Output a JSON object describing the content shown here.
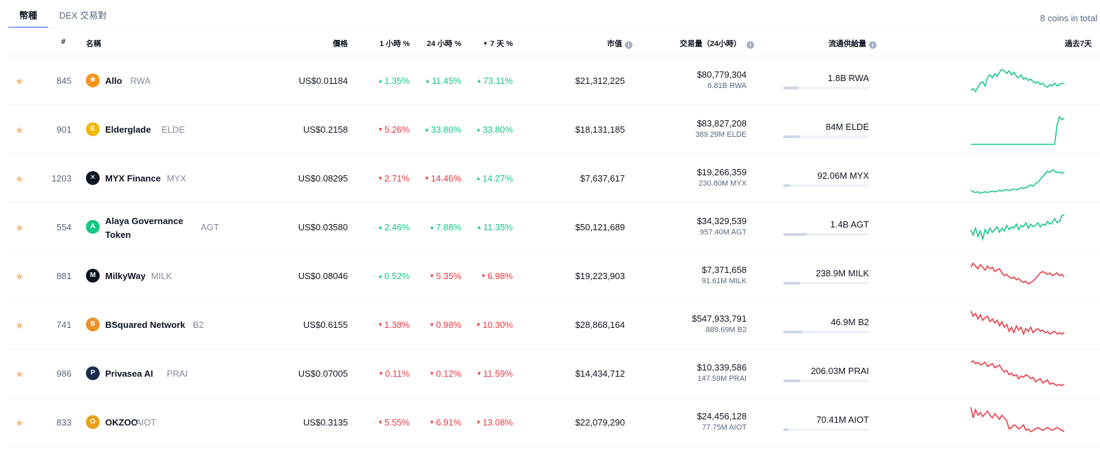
{
  "tabs": [
    {
      "label": "幣種",
      "active": true
    },
    {
      "label": "DEX 交易對",
      "active": false
    }
  ],
  "total_text": "8 coins in total",
  "headers": {
    "rank": "#",
    "name": "名稱",
    "price": "價格",
    "h1": "1 小時 %",
    "h24": "24 小時 %",
    "d7": "7 天 %",
    "mcap": "市值",
    "volume": "交易量（24小時）",
    "supply": "流通供給量",
    "chart": "過去7天"
  },
  "colors": {
    "up": "#16c784",
    "down": "#ea3943",
    "star": "#f6b87e"
  },
  "coins": [
    {
      "rank": "845",
      "name": "Allo",
      "symbol": "RWA",
      "logo_color": "#f7931a",
      "logo_glyph": "✱",
      "price": "US$0.01184",
      "h1": "1.35%",
      "h1_dir": "up",
      "h24": "11.45%",
      "h24_dir": "up",
      "d7": "73.11%",
      "d7_dir": "up",
      "mcap": "$21,312,225",
      "volume": "$80,779,304",
      "volume_coin": "6.81B RWA",
      "supply": "1.8B RWA",
      "supply_fill": 0.18,
      "trend": "up",
      "spark": [
        40,
        38,
        42,
        36,
        30,
        28,
        34,
        22,
        18,
        22,
        16,
        20,
        14,
        10,
        12,
        16,
        12,
        18,
        14,
        20,
        22,
        18,
        24,
        22,
        26,
        24,
        28,
        30,
        28,
        32,
        30,
        34,
        36,
        32,
        34,
        30,
        34,
        32,
        30,
        31
      ]
    },
    {
      "rank": "901",
      "name": "Elderglade",
      "symbol": "ELDE",
      "logo_color": "#f0b90b",
      "logo_glyph": "E",
      "price": "US$0.2158",
      "h1": "5.26%",
      "h1_dir": "down",
      "h24": "33.80%",
      "h24_dir": "up",
      "d7": "33.80%",
      "d7_dir": "up",
      "mcap": "$18,131,185",
      "volume": "$83,827,208",
      "volume_coin": "389.29M ELDE",
      "supply": "84M ELDE",
      "supply_fill": 0.2,
      "trend": "up",
      "spark": [
        48,
        48,
        48,
        48,
        48,
        48,
        48,
        48,
        48,
        48,
        48,
        48,
        48,
        48,
        48,
        48,
        48,
        48,
        48,
        48,
        48,
        48,
        48,
        48,
        48,
        48,
        48,
        48,
        48,
        48,
        48,
        48,
        48,
        48,
        48,
        48,
        20,
        8,
        12,
        10
      ]
    },
    {
      "rank": "1203",
      "name": "MYX Finance",
      "symbol": "MYX",
      "logo_color": "#0d1421",
      "logo_glyph": "✕",
      "price": "US$0.08295",
      "h1": "2.71%",
      "h1_dir": "down",
      "h24": "14.46%",
      "h24_dir": "down",
      "d7": "14.27%",
      "d7_dir": "up",
      "mcap": "$7,637,617",
      "volume": "$19,266,359",
      "volume_coin": "230.80M MYX",
      "supply": "92.06M MYX",
      "supply_fill": 0.08,
      "trend": "up",
      "spark": [
        44,
        46,
        47,
        46,
        48,
        47,
        46,
        47,
        46,
        45,
        46,
        45,
        44,
        45,
        44,
        43,
        44,
        43,
        42,
        43,
        42,
        40,
        41,
        40,
        38,
        36,
        38,
        34,
        32,
        28,
        24,
        20,
        16,
        18,
        14,
        16,
        18,
        17,
        19,
        18
      ]
    },
    {
      "rank": "554",
      "name": "Alaya Governance Token",
      "symbol": "AGT",
      "logo_color": "#16c784",
      "logo_glyph": "A",
      "price": "US$0.03580",
      "h1": "2.46%",
      "h1_dir": "up",
      "h24": "7.88%",
      "h24_dir": "up",
      "d7": "11.35%",
      "d7_dir": "up",
      "mcap": "$50,121,689",
      "volume": "$34,329,539",
      "volume_coin": "957.40M AGT",
      "supply": "1.4B AGT",
      "supply_fill": 0.28,
      "trend": "up",
      "spark": [
        30,
        38,
        28,
        40,
        32,
        44,
        30,
        36,
        28,
        34,
        30,
        26,
        34,
        28,
        32,
        24,
        30,
        26,
        28,
        22,
        30,
        24,
        26,
        20,
        28,
        22,
        26,
        24,
        20,
        26,
        22,
        24,
        18,
        22,
        20,
        14,
        20,
        18,
        10,
        8
      ]
    },
    {
      "rank": "881",
      "name": "MilkyWay",
      "symbol": "MILK",
      "logo_color": "#0d1421",
      "logo_glyph": "M",
      "price": "US$0.08046",
      "h1": "0.52%",
      "h1_dir": "up",
      "h24": "5.35%",
      "h24_dir": "down",
      "d7": "6.98%",
      "d7_dir": "down",
      "mcap": "$19,223,903",
      "volume": "$7,371,658",
      "volume_coin": "91.61M MILK",
      "supply": "238.9M MILK",
      "supply_fill": 0.2,
      "trend": "down",
      "spark": [
        14,
        8,
        12,
        16,
        10,
        14,
        18,
        12,
        16,
        14,
        20,
        18,
        16,
        22,
        26,
        24,
        28,
        30,
        28,
        32,
        30,
        34,
        36,
        34,
        38,
        36,
        34,
        30,
        26,
        22,
        20,
        22,
        24,
        22,
        26,
        24,
        22,
        26,
        24,
        28
      ]
    },
    {
      "rank": "741",
      "name": "BSquared Network",
      "symbol": "B2",
      "logo_color": "#e8912b",
      "logo_glyph": "B",
      "price": "US$0.6155",
      "h1": "1.38%",
      "h1_dir": "down",
      "h24": "0.98%",
      "h24_dir": "down",
      "d7": "10.30%",
      "d7_dir": "down",
      "mcap": "$28,868,164",
      "volume": "$547,933,791",
      "volume_coin": "889.69M B2",
      "supply": "46.9M B2",
      "supply_fill": 0.22,
      "trend": "down",
      "spark": [
        6,
        14,
        10,
        18,
        12,
        20,
        16,
        14,
        22,
        18,
        24,
        20,
        28,
        22,
        30,
        26,
        36,
        30,
        38,
        28,
        34,
        30,
        40,
        32,
        36,
        30,
        38,
        34,
        32,
        36,
        34,
        38,
        36,
        40,
        38,
        36,
        40,
        38,
        40,
        38
      ]
    },
    {
      "rank": "986",
      "name": "Privasea AI",
      "symbol": "PRAI",
      "logo_color": "#1a2b4c",
      "logo_glyph": "P",
      "price": "US$0.07005",
      "h1": "0.11%",
      "h1_dir": "down",
      "h24": "0.12%",
      "h24_dir": "down",
      "d7": "11.59%",
      "d7_dir": "down",
      "mcap": "$14,434,712",
      "volume": "$10,339,586",
      "volume_coin": "147.59M PRAI",
      "supply": "206.03M PRAI",
      "supply_fill": 0.2,
      "trend": "down",
      "spark": [
        10,
        8,
        12,
        10,
        14,
        12,
        10,
        16,
        14,
        12,
        18,
        16,
        14,
        20,
        24,
        22,
        28,
        26,
        30,
        28,
        34,
        30,
        32,
        28,
        30,
        34,
        32,
        38,
        36,
        34,
        40,
        38,
        36,
        42,
        40,
        42,
        44,
        42,
        44,
        42
      ]
    },
    {
      "rank": "833",
      "name": "OKZOO",
      "symbol": "AIOT",
      "logo_color": "#e8a21a",
      "logo_glyph": "O",
      "price": "US$0.3135",
      "h1": "5.55%",
      "h1_dir": "down",
      "h24": "6.91%",
      "h24_dir": "down",
      "d7": "13.08%",
      "d7_dir": "down",
      "mcap": "$22,079,290",
      "volume": "$24,456,128",
      "volume_coin": "77.75M AIOT",
      "supply": "70.41M AIOT",
      "supply_fill": 0.06,
      "trend": "down",
      "spark": [
        4,
        20,
        8,
        16,
        12,
        18,
        14,
        10,
        16,
        20,
        14,
        18,
        22,
        16,
        20,
        24,
        36,
        34,
        30,
        32,
        36,
        34,
        30,
        38,
        36,
        40,
        38,
        36,
        34,
        36,
        38,
        36,
        34,
        36,
        38,
        36,
        34,
        36,
        38,
        40
      ]
    }
  ]
}
